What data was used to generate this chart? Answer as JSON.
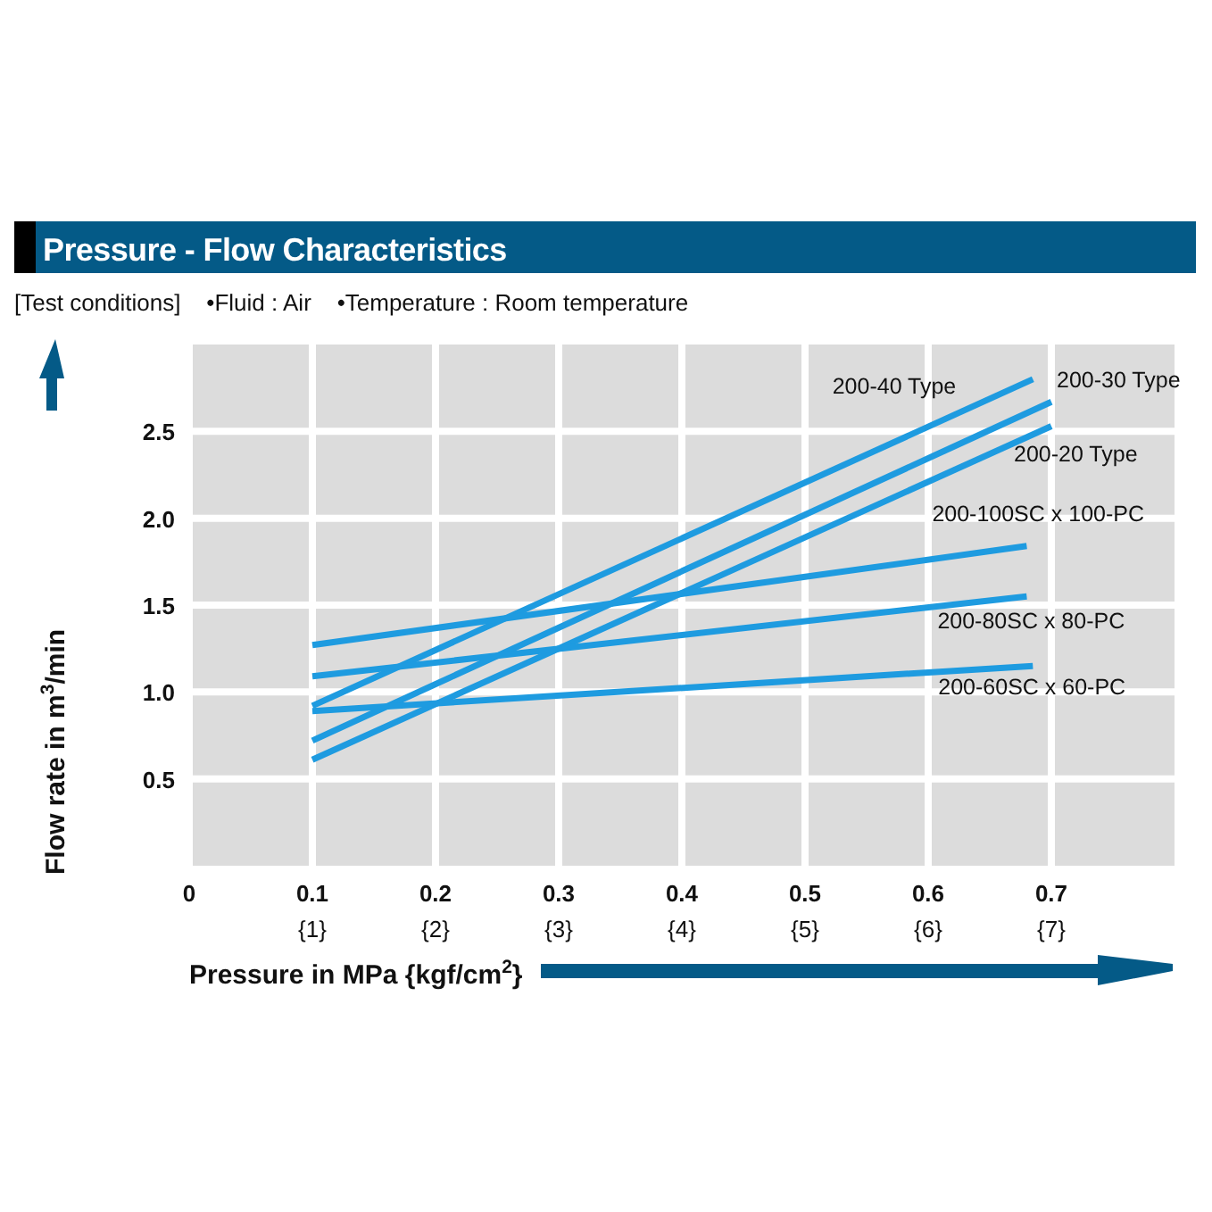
{
  "chart_data": {
    "type": "line",
    "title": "Pressure - Flow Characteristics",
    "subtitle": "[Test conditions]    •Fluid : Air    •Temperature : Room temperature",
    "xlabel": "Pressure in MPa {kgf/cm$^{2}$}",
    "ylabel": "Flow rate in m$^{3}$/min",
    "xlim": [
      0,
      0.8
    ],
    "ylim": [
      0,
      3
    ],
    "xticks": [
      0,
      0.1,
      0.2,
      0.3,
      0.4,
      0.5,
      0.6,
      0.7
    ],
    "x2lim": [
      0,
      8
    ],
    "x2ticks": [
      {
        "value": 1,
        "label": "{1}"
      },
      {
        "value": 2,
        "label": "{2}"
      },
      {
        "value": 3,
        "label": "{3}"
      },
      {
        "value": 4,
        "label": "{4}"
      },
      {
        "value": 5,
        "label": "{5}"
      },
      {
        "value": 6,
        "label": "{6}"
      },
      {
        "value": 7,
        "label": "{7}"
      }
    ],
    "yticks": [
      0.5,
      {
        "value": 1,
        "label": "1.0"
      },
      1.5,
      {
        "value": 2,
        "label": "2.0"
      },
      2.5
    ],
    "grid": true,
    "series": [
      {
        "name": "200-40 Type",
        "color": "#1e9be0",
        "x": [
          0.1,
          0.685
        ],
        "values": [
          0.92,
          2.8
        ]
      },
      {
        "name": "200-30 Type",
        "color": "#1e9be0",
        "x": [
          0.1,
          0.7
        ],
        "values": [
          0.72,
          2.67
        ]
      },
      {
        "name": "200-20 Type",
        "color": "#1e9be0",
        "x": [
          0.1,
          0.7
        ],
        "values": [
          0.61,
          2.53
        ]
      },
      {
        "name": "200-100SC x 100-PC",
        "color": "#1e9be0",
        "x": [
          0.1,
          0.68
        ],
        "values": [
          1.27,
          1.84
        ]
      },
      {
        "name": "200-80SC x 80-PC",
        "color": "#1e9be0",
        "x": [
          0.1,
          0.68
        ],
        "values": [
          1.09,
          1.55
        ]
      },
      {
        "name": "200-60SC x 60-PC",
        "color": "#1e9be0",
        "x": [
          0.1,
          0.685
        ],
        "values": [
          0.89,
          1.15
        ]
      }
    ]
  }
}
